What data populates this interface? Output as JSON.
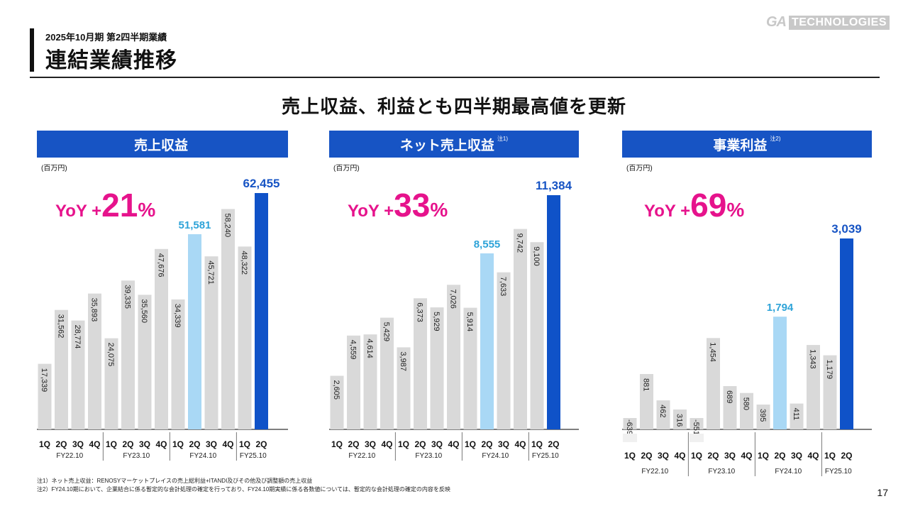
{
  "header": {
    "subtitle": "2025年10月期 第2四半期業績",
    "title": "連結業績推移",
    "logo_ga": "GA",
    "logo_tech": "TECHNOLOGIES"
  },
  "headline": "売上収益、利益とも四半期最高値を更新",
  "colors": {
    "bar_default": "#d9d9d9",
    "bar_prev_highlight": "#a9d8f5",
    "bar_current": "#0f52c8",
    "label_highlight": "#2ea3d8",
    "label_current": "#1754c4",
    "yoy": "#e6138c",
    "panel_header": "#1754c4"
  },
  "panels": [
    {
      "title": "売上収益",
      "note_mark": "",
      "unit": "(百万円)",
      "yoy": {
        "prefix": "YoY +",
        "value": "21",
        "suffix": "%"
      }
    },
    {
      "title": "ネット売上収益",
      "note_mark": "注1)",
      "unit": "(百万円)",
      "yoy": {
        "prefix": "YoY +",
        "value": "33",
        "suffix": "%"
      }
    },
    {
      "title": "事業利益",
      "note_mark": "注2)",
      "unit": "(百万円)",
      "yoy": {
        "prefix": "YoY +",
        "value": "69",
        "suffix": "%"
      }
    }
  ],
  "chart_data": [
    {
      "type": "bar",
      "title": "売上収益",
      "unit": "(百万円)",
      "quarters": [
        "1Q",
        "2Q",
        "3Q",
        "4Q",
        "1Q",
        "2Q",
        "3Q",
        "4Q",
        "1Q",
        "2Q",
        "3Q",
        "4Q",
        "1Q",
        "2Q"
      ],
      "fiscal_years": [
        "FY22.10",
        "FY23.10",
        "FY24.10",
        "FY25.10"
      ],
      "values": [
        17339,
        31562,
        28774,
        35893,
        24075,
        39335,
        35560,
        47676,
        34339,
        51581,
        45721,
        58240,
        48322,
        62455
      ],
      "labels": [
        "17,339",
        "31,562",
        "28,774",
        "35,893",
        "24,075",
        "39,335",
        "35,560",
        "47,676",
        "34,339",
        "51,581",
        "45,721",
        "58,240",
        "48,322",
        "62,455"
      ],
      "highlight_prev_index": 9,
      "highlight_current_index": 13,
      "ylim": [
        0,
        62455
      ]
    },
    {
      "type": "bar",
      "title": "ネット売上収益",
      "unit": "(百万円)",
      "quarters": [
        "1Q",
        "2Q",
        "3Q",
        "4Q",
        "1Q",
        "2Q",
        "3Q",
        "4Q",
        "1Q",
        "2Q",
        "3Q",
        "4Q",
        "1Q",
        "2Q"
      ],
      "fiscal_years": [
        "FY22.10",
        "FY23.10",
        "FY24.10",
        "FY25.10"
      ],
      "values": [
        2605,
        4559,
        4614,
        5429,
        3987,
        6373,
        5929,
        7026,
        5914,
        8555,
        7633,
        9742,
        9100,
        11384
      ],
      "labels": [
        "2,605",
        "4,559",
        "4,614",
        "5,429",
        "3,987",
        "6,373",
        "5,929",
        "7,026",
        "5,914",
        "8,555",
        "7,633",
        "9,742",
        "9,100",
        "11,384"
      ],
      "highlight_prev_index": 9,
      "highlight_current_index": 13,
      "ylim": [
        0,
        11384
      ]
    },
    {
      "type": "bar",
      "title": "事業利益",
      "unit": "(百万円)",
      "quarters": [
        "1Q",
        "2Q",
        "3Q",
        "4Q",
        "1Q",
        "2Q",
        "3Q",
        "4Q",
        "1Q",
        "2Q",
        "3Q",
        "4Q",
        "1Q",
        "2Q"
      ],
      "fiscal_years": [
        "FY22.10",
        "FY23.10",
        "FY24.10",
        "FY25.10"
      ],
      "values": [
        -639,
        881,
        462,
        316,
        -551,
        1454,
        689,
        580,
        395,
        1794,
        411,
        1343,
        1179,
        3039
      ],
      "labels": [
        "-639",
        "881",
        "462",
        "316",
        "-551",
        "1,454",
        "689",
        "580",
        "395",
        "1,794",
        "411",
        "1,343",
        "1,179",
        "3,039"
      ],
      "highlight_prev_index": 9,
      "highlight_current_index": 13,
      "ylim": [
        -639,
        3039
      ],
      "axis_break": true
    }
  ],
  "notes": [
    "注1）ネット売上収益：RENOSYマーケットプレイスの売上総利益+ITANDI及びその他及び調整額の売上収益",
    "注2）FY24.10期において、企業結合に係る暫定的な会計処理の確定を行っており、FY24.10期実績に係る各数値については、暫定的な会計処理の確定の内容を反映"
  ],
  "page_number": "17"
}
